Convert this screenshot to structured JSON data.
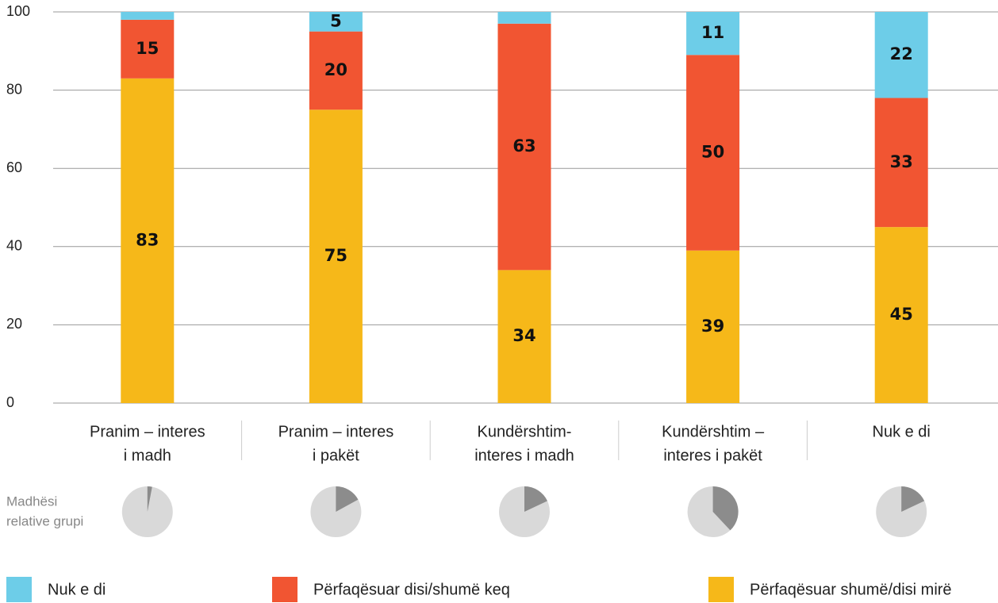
{
  "chart_data": {
    "type": "stacked_bar",
    "categories": [
      [
        "Pranim – interes",
        "i madh"
      ],
      [
        "Pranim – interes",
        "i pakët"
      ],
      [
        "Kundërshtim-",
        "interes i madh"
      ],
      [
        "Kundërshtim –",
        "interes i pakët"
      ],
      [
        "Nuk e di"
      ]
    ],
    "series": [
      {
        "name": "Nuk e di",
        "color": "#6dcde8",
        "values": [
          2,
          5,
          3,
          11,
          22
        ],
        "value_labels": [
          null,
          "5",
          null,
          "11",
          "22"
        ]
      },
      {
        "name": "Përfaqësuar disi/shumë keq",
        "color": "#f15532",
        "values": [
          15,
          20,
          63,
          50,
          33
        ]
      },
      {
        "name": "Përfaqësuar shumë/disi mirë",
        "color": "#f6b819",
        "values": [
          83,
          75,
          34,
          39,
          45
        ]
      }
    ],
    "ylim": [
      0,
      100
    ],
    "yticks": [
      0,
      20,
      40,
      60,
      80,
      100
    ],
    "grid": true,
    "group_size": {
      "type": "pie",
      "label": [
        "Madhësi",
        "relative grupi"
      ],
      "values": [
        3,
        17,
        18,
        38,
        18
      ],
      "color": "#8c8c8c",
      "background": "#d9d9d9"
    }
  }
}
